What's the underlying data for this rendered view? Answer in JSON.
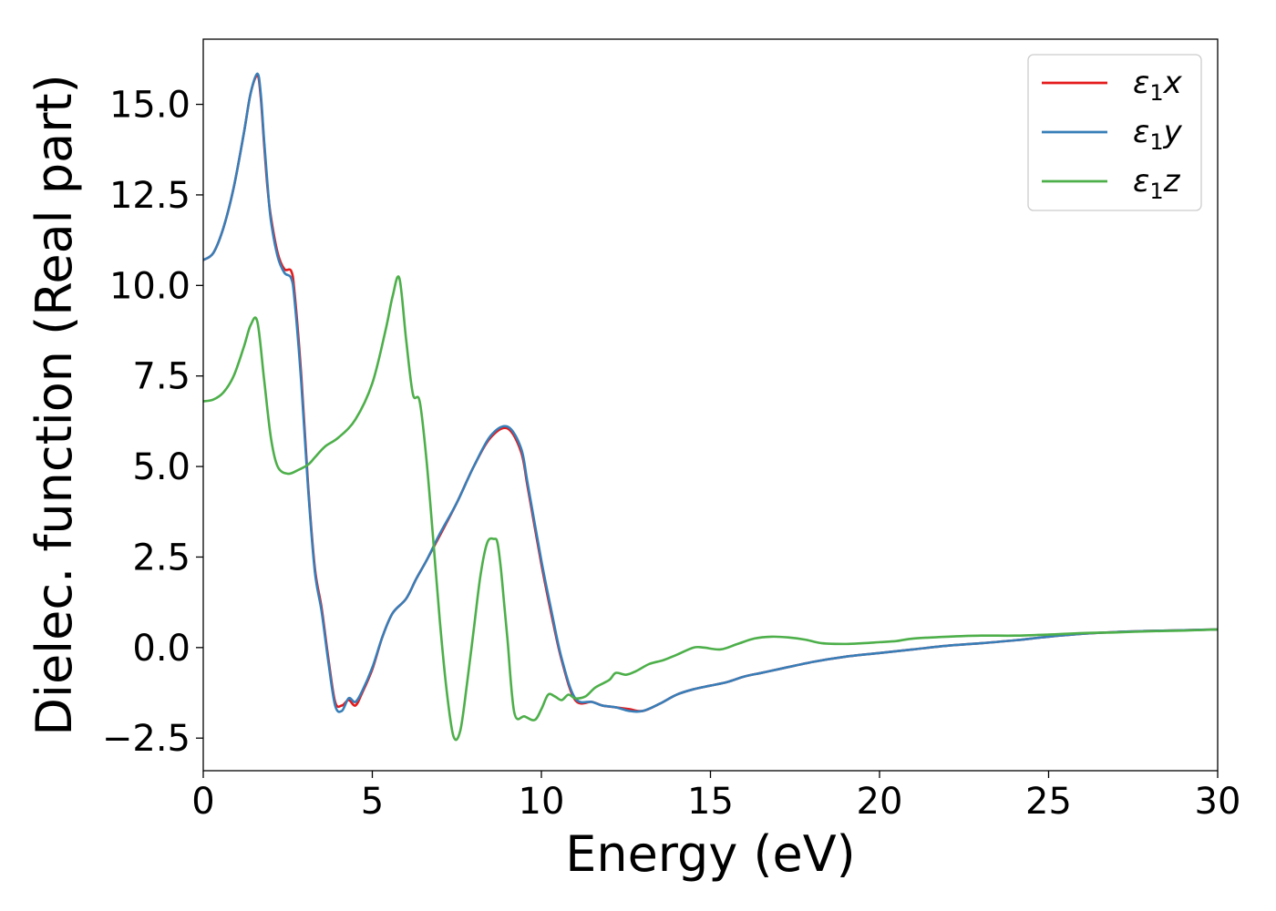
{
  "chart_data": {
    "type": "line",
    "title": "",
    "xlabel": "Energy (eV)",
    "ylabel": "Dielec. function (Real part)",
    "xlim": [
      0,
      30
    ],
    "ylim": [
      -3.4,
      16.8
    ],
    "xticks": [
      0,
      5,
      10,
      15,
      20,
      25,
      30
    ],
    "xtick_labels": [
      "0",
      "5",
      "10",
      "15",
      "20",
      "25",
      "30"
    ],
    "yticks": [
      -2.5,
      0.0,
      2.5,
      5.0,
      7.5,
      10.0,
      12.5,
      15.0
    ],
    "ytick_labels": [
      "−2.5",
      "0.0",
      "2.5",
      "5.0",
      "7.5",
      "10.0",
      "12.5",
      "15.0"
    ],
    "grid": false,
    "legend_position": "top-right",
    "series": [
      {
        "name": "ε1x",
        "label_main": "ε",
        "label_sub": "1",
        "label_tail": "x",
        "color": "#e41a1c",
        "x": [
          0,
          0.3,
          0.6,
          0.9,
          1.2,
          1.4,
          1.6,
          1.7,
          1.8,
          1.9,
          2.0,
          2.2,
          2.4,
          2.6,
          2.7,
          2.9,
          3.1,
          3.3,
          3.5,
          3.7,
          3.9,
          4.1,
          4.3,
          4.5,
          4.7,
          5.0,
          5.3,
          5.6,
          6.0,
          6.3,
          6.6,
          7.0,
          7.5,
          8.0,
          8.5,
          9.0,
          9.4,
          9.6,
          10.0,
          10.3,
          10.6,
          11.0,
          11.5,
          11.8,
          12.2,
          12.6,
          13.0,
          13.5,
          14.0,
          14.5,
          15.0,
          15.5,
          16.0,
          16.5,
          17.0,
          18.0,
          19.0,
          20.0,
          21.0,
          22.0,
          23.0,
          24.0,
          25.0,
          26.0,
          27.0,
          28.0,
          29.0,
          30.0
        ],
        "values": [
          10.7,
          10.9,
          11.6,
          12.7,
          14.2,
          15.3,
          15.8,
          15.2,
          13.9,
          12.7,
          11.9,
          10.9,
          10.45,
          10.4,
          9.8,
          7.5,
          4.5,
          2.2,
          1.1,
          -0.3,
          -1.5,
          -1.6,
          -1.45,
          -1.6,
          -1.25,
          -0.6,
          0.3,
          0.95,
          1.35,
          1.9,
          2.4,
          3.1,
          4.0,
          5.0,
          5.8,
          6.05,
          5.4,
          4.4,
          2.3,
          0.9,
          -0.35,
          -1.45,
          -1.5,
          -1.6,
          -1.65,
          -1.7,
          -1.75,
          -1.55,
          -1.3,
          -1.15,
          -1.05,
          -0.95,
          -0.8,
          -0.7,
          -0.6,
          -0.4,
          -0.25,
          -0.15,
          -0.05,
          0.05,
          0.12,
          0.2,
          0.3,
          0.38,
          0.43,
          0.46,
          0.48,
          0.5
        ]
      },
      {
        "name": "ε1y",
        "label_main": "ε",
        "label_sub": "1",
        "label_tail": "y",
        "color": "#377eb8",
        "x": [
          0,
          0.3,
          0.6,
          0.9,
          1.2,
          1.4,
          1.6,
          1.7,
          1.8,
          1.9,
          2.0,
          2.2,
          2.4,
          2.6,
          2.7,
          2.9,
          3.1,
          3.3,
          3.5,
          3.7,
          3.9,
          4.1,
          4.3,
          4.5,
          4.7,
          5.0,
          5.3,
          5.6,
          6.0,
          6.3,
          6.6,
          7.0,
          7.5,
          8.0,
          8.5,
          9.0,
          9.4,
          9.6,
          10.0,
          10.3,
          10.6,
          11.0,
          11.5,
          11.8,
          12.2,
          12.6,
          13.0,
          13.5,
          14.0,
          14.5,
          15.0,
          15.5,
          16.0,
          16.5,
          17.0,
          18.0,
          19.0,
          20.0,
          21.0,
          22.0,
          23.0,
          24.0,
          25.0,
          26.0,
          27.0,
          28.0,
          29.0,
          30.0
        ],
        "values": [
          10.7,
          10.9,
          11.6,
          12.7,
          14.2,
          15.3,
          15.85,
          15.3,
          14.0,
          12.8,
          11.8,
          10.8,
          10.35,
          10.2,
          9.6,
          7.3,
          4.4,
          2.1,
          1.0,
          -0.4,
          -1.6,
          -1.75,
          -1.4,
          -1.5,
          -1.2,
          -0.55,
          0.3,
          0.95,
          1.35,
          1.9,
          2.4,
          3.15,
          4.0,
          5.0,
          5.85,
          6.1,
          5.5,
          4.5,
          2.4,
          1.0,
          -0.3,
          -1.4,
          -1.5,
          -1.6,
          -1.65,
          -1.75,
          -1.75,
          -1.55,
          -1.3,
          -1.15,
          -1.05,
          -0.95,
          -0.8,
          -0.7,
          -0.6,
          -0.4,
          -0.25,
          -0.15,
          -0.05,
          0.05,
          0.12,
          0.2,
          0.3,
          0.38,
          0.43,
          0.46,
          0.48,
          0.5
        ]
      },
      {
        "name": "ε1z",
        "label_main": "ε",
        "label_sub": "1",
        "label_tail": "z",
        "color": "#4daf4a",
        "x": [
          0,
          0.3,
          0.6,
          0.9,
          1.2,
          1.4,
          1.6,
          1.8,
          2.0,
          2.2,
          2.5,
          2.8,
          3.1,
          3.3,
          3.6,
          4.0,
          4.5,
          5.0,
          5.4,
          5.6,
          5.8,
          6.0,
          6.2,
          6.4,
          6.6,
          6.8,
          7.0,
          7.2,
          7.4,
          7.6,
          7.8,
          8.0,
          8.2,
          8.4,
          8.6,
          8.7,
          8.8,
          8.9,
          9.0,
          9.2,
          9.5,
          9.8,
          10.0,
          10.2,
          10.4,
          10.6,
          10.8,
          11.0,
          11.3,
          11.6,
          12.0,
          12.2,
          12.5,
          12.8,
          13.2,
          13.6,
          14.0,
          14.5,
          14.8,
          15.3,
          15.8,
          16.3,
          16.8,
          17.3,
          17.8,
          18.3,
          19.0,
          19.5,
          20.0,
          20.5,
          21.0,
          22.0,
          23.0,
          24.0,
          25.0,
          26.0,
          27.0,
          28.0,
          29.0,
          30.0
        ],
        "values": [
          6.8,
          6.85,
          7.05,
          7.5,
          8.3,
          8.9,
          9.0,
          7.4,
          5.8,
          5.0,
          4.8,
          4.9,
          5.05,
          5.25,
          5.55,
          5.8,
          6.3,
          7.3,
          8.8,
          9.7,
          10.2,
          8.5,
          7.0,
          6.8,
          5.2,
          3.0,
          0.7,
          -1.2,
          -2.45,
          -2.3,
          -1.0,
          0.5,
          2.0,
          2.9,
          3.0,
          2.9,
          2.2,
          1.2,
          0.2,
          -1.8,
          -1.9,
          -2.0,
          -1.7,
          -1.3,
          -1.35,
          -1.45,
          -1.3,
          -1.4,
          -1.35,
          -1.1,
          -0.9,
          -0.7,
          -0.75,
          -0.65,
          -0.45,
          -0.35,
          -0.2,
          0.0,
          0.0,
          -0.05,
          0.1,
          0.25,
          0.3,
          0.28,
          0.22,
          0.12,
          0.1,
          0.12,
          0.15,
          0.18,
          0.25,
          0.3,
          0.33,
          0.33,
          0.36,
          0.4,
          0.42,
          0.45,
          0.47,
          0.5
        ]
      }
    ]
  }
}
